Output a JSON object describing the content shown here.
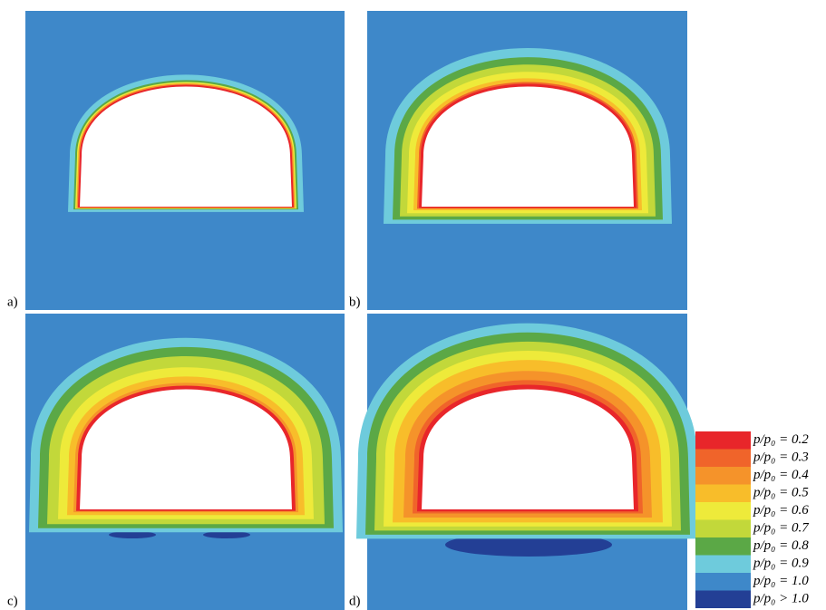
{
  "panels": [
    {
      "label": "a)"
    },
    {
      "label": "b)"
    },
    {
      "label": "c)"
    },
    {
      "label": "d)"
    }
  ],
  "legend": [
    {
      "label": "p/p₀ = 0.2",
      "color": "#e8262a"
    },
    {
      "label": "p/p₀ = 0.3",
      "color": "#f0642a"
    },
    {
      "label": "p/p₀ = 0.4",
      "color": "#f5932a"
    },
    {
      "label": "p/p₀ = 0.5",
      "color": "#f8bd2a"
    },
    {
      "label": "p/p₀ = 0.6",
      "color": "#eeea3a"
    },
    {
      "label": "p/p₀ = 0.7",
      "color": "#c2d83a"
    },
    {
      "label": "p/p₀ = 0.8",
      "color": "#5ba846"
    },
    {
      "label": "p/p₀ = 0.9",
      "color": "#6ecbdc"
    },
    {
      "label": "p/p₀ = 1.0",
      "color": "#3e88c9"
    },
    {
      "label": "p/p₀ > 1.0",
      "color": "#233f95"
    }
  ]
}
